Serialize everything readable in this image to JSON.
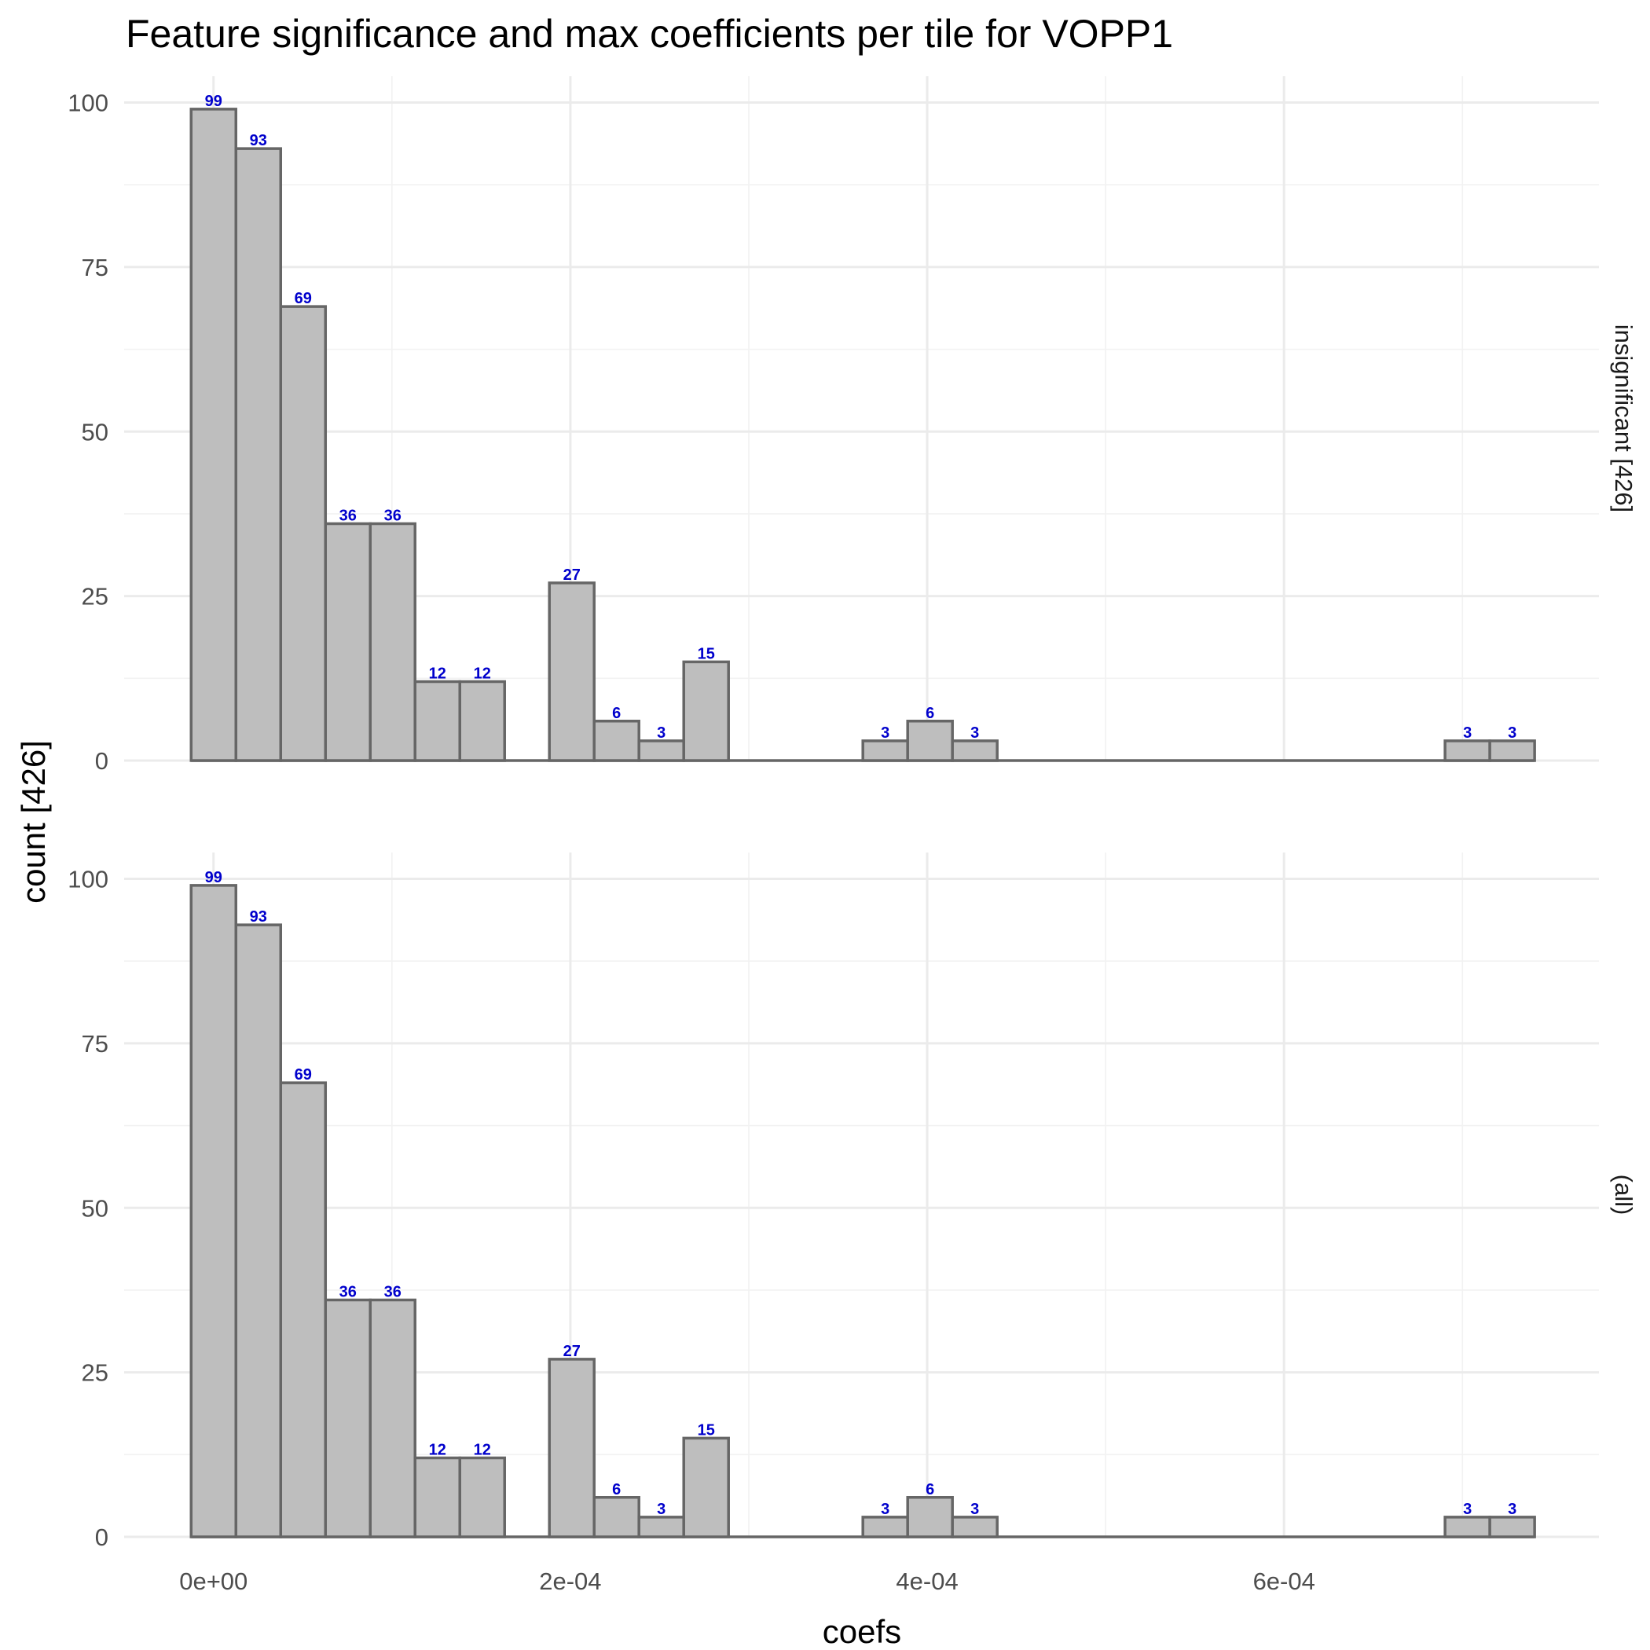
{
  "chart_data": {
    "type": "bar",
    "title": "Feature significance and max coefficients per tile for VOPP1",
    "xlabel": "coefs",
    "ylabel": "count [426]",
    "x_ticks": [
      {
        "value": 0,
        "label": "0e+00"
      },
      {
        "value": 0.0002,
        "label": "2e-04"
      },
      {
        "value": 0.0004,
        "label": "4e-04"
      },
      {
        "value": 0.0006,
        "label": "6e-04"
      }
    ],
    "y_ticks": [
      0,
      25,
      50,
      75,
      100
    ],
    "xlim": [
      -5.01e-05,
      0.0007765
    ],
    "ylim": [
      0,
      104
    ],
    "bin_width": 2.51e-05,
    "bin_centers": [
      0,
      2.51e-05,
      5.02e-05,
      7.53e-05,
      0.0001004,
      0.0001255,
      0.0001506,
      0.0001757,
      0.0002008,
      0.0002259,
      0.000251,
      0.0002761,
      0.0003012,
      0.0003263,
      0.0003514,
      0.0003765,
      0.0004016,
      0.0004267,
      0.0004518,
      0.0004769,
      0.000502,
      0.0005271,
      0.0005522,
      0.0005773,
      0.0006024,
      0.0006275,
      0.0006526,
      0.0006777,
      0.0007028,
      0.0007279
    ],
    "panels": [
      {
        "label": "insignificant [426]",
        "values": [
          99,
          93,
          69,
          36,
          36,
          12,
          12,
          0,
          27,
          6,
          3,
          15,
          0,
          0,
          0,
          3,
          6,
          3,
          0,
          0,
          0,
          0,
          0,
          0,
          0,
          0,
          0,
          0,
          3,
          3
        ]
      },
      {
        "label": "(all)",
        "values": [
          99,
          93,
          69,
          36,
          36,
          12,
          12,
          0,
          27,
          6,
          3,
          15,
          0,
          0,
          0,
          3,
          6,
          3,
          0,
          0,
          0,
          0,
          0,
          0,
          0,
          0,
          0,
          0,
          3,
          3
        ]
      }
    ],
    "grid": true,
    "legend": "none",
    "colors": {
      "bar_fill": "#bebebe",
      "bar_outline": "#666666",
      "count_label": "#0000cc"
    }
  }
}
